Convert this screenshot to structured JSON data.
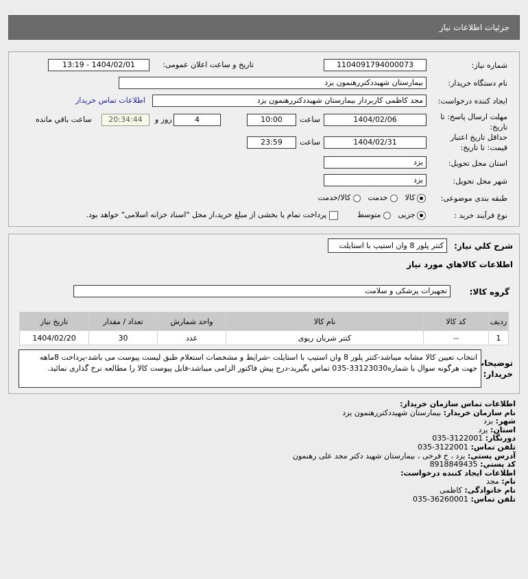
{
  "header": {
    "title": "جزئیات اطلاعات نیاز"
  },
  "form": {
    "need_number_label": "شماره نیاز:",
    "need_number": "1104091794000073",
    "announce_label": "تاریخ و ساعت اعلان عمومی:",
    "announce_value": "1404/02/01 - 13:19",
    "buyer_org_label": "نام دستگاه خریدار:",
    "buyer_org": "بیمارستان شهیددکتررهنمون یزد",
    "requester_label": "ایجاد کننده درخواست:",
    "requester": "مجد کاظمی کاربرداز بیمارستان شهیددکتررهنمون یزد",
    "contact_link": "اطلاعات تماس خریدار",
    "deadline_label_1": "مهلت ارسال پاسخ: تا",
    "deadline_label_2": "تاریخ:",
    "deadline_date": "1404/02/06",
    "time_label": "ساعت",
    "deadline_time": "10:00",
    "days": "4",
    "days_label": "روز و",
    "remaining": "20:34:44",
    "remaining_label": "ساعت باقي مانده",
    "validity_label_1": "حداقل تاریخ اعتبار",
    "validity_label_2": "قیمت: تا تاریخ:",
    "validity_date": "1404/02/31",
    "validity_time": "23:59",
    "province_label": "استان محل تحویل:",
    "province": "یزد",
    "city_label": "شهر محل تحویل:",
    "city": "یزد",
    "category_label": "طبقه بندی موضوعی:",
    "category_options": [
      "کالا",
      "خدمت",
      "کالا/خدمت"
    ],
    "category_selected": "کالا",
    "process_label": "نوع فرآیند خرید :",
    "process_options": [
      "جزیی",
      "متوسط"
    ],
    "process_selected": "جزیی",
    "payment_note": "پرداخت تمام یا بخشی از مبلغ خرید،از محل \"اسناد خزانه اسلامی\" خواهد بود."
  },
  "details": {
    "summary_label": "شرح کلي نیاز:",
    "summary": "کتتر پلور 8 وان استیپ با استایلت",
    "goods_title": "اطلاعات کالاهاي مورد نیاز",
    "group_label": "گروه کالا:",
    "group": "تجهیزات پزشکی و سلامت",
    "table": {
      "headers": [
        "ردیف",
        "کد کالا",
        "نام کالا",
        "واحد شمارش",
        "تعداد / مقدار",
        "تاریخ نیاز"
      ],
      "rows": [
        [
          "1",
          "--",
          "کتتر شریان ریوی",
          "عدد",
          "30",
          "1404/02/20"
        ]
      ]
    },
    "notes_label_1": "توضیحات",
    "notes_label_2": "خریدار:",
    "notes": "انتخاب تعیین کالا مشابه میباشد-کتتر پلور 8 وان استیپ با استایلت -شرایط و مشخصات استعلام طبق لیست پیوست می باشد-پرداخت 8ماهه جهت هرگونه سوال با شماره33123030-035 تماس بگیرید-درج پیش فاکتور الزامی میباشد-فایل پیوست کالا را مطالعه نرخ گذاری نمائید."
  },
  "contact": {
    "title": "اطلاعات تماس سازمان خریدار:",
    "lines": [
      {
        "k": "نام سازمان خریدار:",
        "v": "بیمارستان شهیددکتررهنمون یزد"
      },
      {
        "k": "شهر:",
        "v": "یزد"
      },
      {
        "k": "استان:",
        "v": "یزد"
      },
      {
        "k": "دورنگار:",
        "v": "3122001-035"
      },
      {
        "k": "تلفن تماس:",
        "v": "3122001-035"
      },
      {
        "k": "آدرس پستي:",
        "v": "یزد ، خ فرخی ، بیمارستان شهید دکتر مجد علی رهنمون"
      },
      {
        "k": "کد پستي:",
        "v": "8918849435"
      }
    ],
    "creator_title": "اطلاعات ایجاد کننده درخواست:",
    "creator": [
      {
        "k": "نام:",
        "v": "مجد"
      },
      {
        "k": "نام خانوادگی:",
        "v": "کاظمی"
      },
      {
        "k": "تلفن تماس:",
        "v": "36260001-035"
      }
    ]
  }
}
